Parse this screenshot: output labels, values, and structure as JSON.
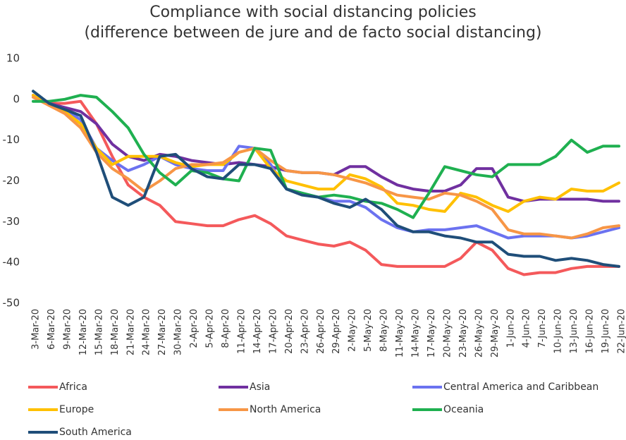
{
  "chart_data": {
    "type": "line",
    "title": "Compliance with social distancing policies",
    "subtitle": "(difference between de jure and de facto social distancing)",
    "categories": [
      "3-Mar-20",
      "6-Mar-20",
      "9-Mar-20",
      "12-Mar-20",
      "15-Mar-20",
      "18-Mar-20",
      "21-Mar-20",
      "24-Mar-20",
      "27-Mar-20",
      "30-Mar-20",
      "2-Apr-20",
      "5-Apr-20",
      "8-Apr-20",
      "11-Apr-20",
      "14-Apr-20",
      "17-Apr-20",
      "20-Apr-20",
      "23-Apr-20",
      "26-Apr-20",
      "29-Apr-20",
      "2-May-20",
      "5-May-20",
      "8-May-20",
      "11-May-20",
      "14-May-20",
      "17-May-20",
      "20-May-20",
      "23-May-20",
      "26-May-20",
      "29-May-20",
      "1-Jun-20",
      "4-Jun-20",
      "7-Jun-20",
      "10-Jun-20",
      "13-Jun-20",
      "16-Jun-20",
      "19-Jun-20",
      "22-Jun-20"
    ],
    "series": [
      {
        "name": "Africa",
        "color": "#f4595b",
        "values": [
          1,
          -1,
          -1,
          -0.5,
          -6,
          -14,
          -21,
          -24,
          -26,
          -30,
          -30.5,
          -31,
          -31,
          -29.5,
          -28.5,
          -30.5,
          -33.5,
          -34.5,
          -35.5,
          -36,
          -35,
          -37,
          -40.5,
          -41,
          -41,
          -41,
          -41,
          -39,
          -35,
          -37,
          -41.5,
          -43,
          -42.5,
          -42.5,
          -41.5,
          -41,
          -41,
          -41
        ]
      },
      {
        "name": "Asia",
        "color": "#7030a0",
        "values": [
          1,
          -1,
          -2,
          -3,
          -6,
          -11,
          -14,
          -15,
          -13.5,
          -14,
          -15,
          -15.5,
          -16,
          -15.5,
          -16,
          -16.5,
          -17.5,
          -18,
          -18,
          -18.5,
          -16.5,
          -16.5,
          -19,
          -21,
          -22,
          -22.5,
          -22.5,
          -21,
          -17,
          -17,
          -24,
          -25,
          -24.5,
          -24.5,
          -24.5,
          -24.5,
          -25,
          -25
        ]
      },
      {
        "name": "Central America and Caribbean",
        "color": "#6b72f0",
        "values": [
          1,
          -1,
          -2.5,
          -5,
          -12,
          -15,
          -17.5,
          -16,
          -14,
          -16,
          -17,
          -17.5,
          -17.5,
          -11.5,
          -12,
          -16,
          -22,
          -23,
          -24,
          -25,
          -25,
          -26.5,
          -29.5,
          -31.5,
          -32.5,
          -32,
          -32,
          -31.5,
          -31,
          -32.5,
          -34,
          -33.5,
          -33.5,
          -33.5,
          -34,
          -33.5,
          -32.5,
          -31.5
        ]
      },
      {
        "name": "Europe",
        "color": "#ffc000",
        "values": [
          1,
          -1.5,
          -3,
          -6,
          -12,
          -16,
          -14,
          -14,
          -14,
          -15.5,
          -16.5,
          -16,
          -16,
          -13,
          -12,
          -17,
          -20,
          -21,
          -22,
          -22,
          -18.5,
          -19.5,
          -21.5,
          -25.5,
          -26,
          -27,
          -27.5,
          -23,
          -24,
          -26,
          -27.5,
          -25,
          -24,
          -24.5,
          -22,
          -22.5,
          -22.5,
          -20.5
        ]
      },
      {
        "name": "North America",
        "color": "#f79646",
        "values": [
          0.5,
          -1.5,
          -3.5,
          -7,
          -13,
          -17,
          -19.5,
          -22.5,
          -20,
          -17,
          -16,
          -16,
          -15.5,
          -13,
          -12,
          -15,
          -17.5,
          -18,
          -18,
          -18.5,
          -19.5,
          -20.5,
          -22,
          -23.5,
          -24,
          -24.5,
          -23,
          -23.5,
          -25,
          -27,
          -32,
          -33,
          -33,
          -33.5,
          -34,
          -33,
          -31.5,
          -31
        ]
      },
      {
        "name": "Oceania",
        "color": "#1fb050",
        "values": [
          -0.5,
          -0.5,
          0,
          1,
          0.5,
          -3,
          -7,
          -13.5,
          -18,
          -21,
          -17.5,
          -18,
          -19.5,
          -20,
          -12,
          -12.5,
          -22,
          -23,
          -24,
          -23.5,
          -24,
          -25,
          -25.5,
          -27,
          -29,
          -23,
          -16.5,
          -17.5,
          -18.5,
          -19,
          -16,
          -16,
          -16,
          -14,
          -10,
          -13,
          -11.5,
          -11.5
        ]
      },
      {
        "name": "South America",
        "color": "#1f4e79",
        "values": [
          2,
          -1,
          -2.5,
          -4,
          -13,
          -24,
          -26,
          -24,
          -14,
          -13.5,
          -17,
          -19,
          -19.5,
          -16,
          -16,
          -17,
          -22,
          -23.5,
          -24,
          -25.5,
          -26.5,
          -24.5,
          -27,
          -31,
          -32.5,
          -32.5,
          -33.5,
          -34,
          -35,
          -35,
          -38,
          -38.5,
          -38.5,
          -39.5,
          -39,
          -39.5,
          -40.5,
          -41
        ]
      }
    ],
    "ylim": [
      -50,
      10
    ],
    "yticks": [
      -50,
      -40,
      -30,
      -20,
      -10,
      0,
      10
    ],
    "grid": false
  }
}
